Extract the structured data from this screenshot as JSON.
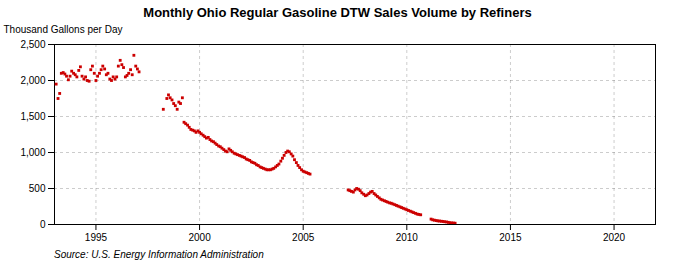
{
  "chart_data": {
    "type": "scatter",
    "title": "Monthly Ohio Regular Gasoline DTW Sales Volume by Refiners",
    "ylabel": "Thousand Gallons per Day",
    "annotation": "Source: U.S. Energy Information Administration",
    "color": "#CC0000",
    "marker": "square",
    "grid": true,
    "xlim": [
      1993.0,
      2022.0
    ],
    "ylim": [
      0,
      2500
    ],
    "xticks": [
      1995,
      2000,
      2005,
      2010,
      2015,
      2020
    ],
    "yticks": [
      0,
      500,
      {
        "value": 1000,
        "label": "1,000"
      },
      {
        "value": 1500,
        "label": "1,500"
      },
      {
        "value": 2000,
        "label": "2,000"
      },
      {
        "value": 2500,
        "label": "2,500"
      }
    ],
    "x": [
      1993.08,
      1993.17,
      1993.25,
      1993.33,
      1993.42,
      1993.5,
      1993.58,
      1993.67,
      1993.75,
      1993.83,
      1993.92,
      1994.0,
      1994.08,
      1994.17,
      1994.25,
      1994.33,
      1994.42,
      1994.5,
      1994.58,
      1994.67,
      1994.75,
      1994.83,
      1994.92,
      1995.0,
      1995.08,
      1995.17,
      1995.25,
      1995.33,
      1995.42,
      1995.5,
      1995.58,
      1995.67,
      1995.75,
      1995.83,
      1995.92,
      1996.0,
      1996.08,
      1996.17,
      1996.25,
      1996.33,
      1996.42,
      1996.5,
      1996.58,
      1996.67,
      1996.75,
      1996.83,
      1996.92,
      1997.0,
      1997.08,
      1998.25,
      1998.42,
      1998.5,
      1998.58,
      1998.67,
      1998.75,
      1998.83,
      1998.92,
      1999.0,
      1999.08,
      1999.17,
      1999.25,
      1999.33,
      1999.42,
      1999.5,
      1999.58,
      1999.67,
      1999.75,
      1999.83,
      1999.92,
      2000.0,
      2000.08,
      2000.17,
      2000.25,
      2000.33,
      2000.42,
      2000.5,
      2000.58,
      2000.67,
      2000.75,
      2000.83,
      2000.92,
      2001.0,
      2001.08,
      2001.17,
      2001.25,
      2001.33,
      2001.42,
      2001.5,
      2001.58,
      2001.67,
      2001.75,
      2001.83,
      2001.92,
      2002.0,
      2002.08,
      2002.17,
      2002.25,
      2002.33,
      2002.42,
      2002.5,
      2002.58,
      2002.67,
      2002.75,
      2002.83,
      2002.92,
      2003.0,
      2003.08,
      2003.17,
      2003.25,
      2003.33,
      2003.42,
      2003.5,
      2003.58,
      2003.67,
      2003.75,
      2003.83,
      2003.92,
      2004.0,
      2004.08,
      2004.17,
      2004.25,
      2004.33,
      2004.42,
      2004.5,
      2004.58,
      2004.67,
      2004.75,
      2004.83,
      2004.92,
      2005.0,
      2005.08,
      2005.17,
      2005.25,
      2005.33,
      2007.17,
      2007.25,
      2007.33,
      2007.42,
      2007.5,
      2007.58,
      2007.67,
      2007.75,
      2007.83,
      2007.92,
      2008.0,
      2008.08,
      2008.17,
      2008.25,
      2008.33,
      2008.42,
      2008.5,
      2008.58,
      2008.67,
      2008.75,
      2008.83,
      2008.92,
      2009.0,
      2009.08,
      2009.17,
      2009.25,
      2009.33,
      2009.42,
      2009.5,
      2009.58,
      2009.67,
      2009.75,
      2009.83,
      2009.92,
      2010.0,
      2010.08,
      2010.17,
      2010.25,
      2010.33,
      2010.42,
      2010.5,
      2010.58,
      2010.67,
      2011.17,
      2011.25,
      2011.33,
      2011.42,
      2011.5,
      2011.58,
      2011.67,
      2011.75,
      2011.83,
      2011.92,
      2012.0,
      2012.08,
      2012.17,
      2012.25,
      2012.33
    ],
    "values": [
      1950,
      1750,
      1820,
      2100,
      2110,
      2090,
      2060,
      2010,
      2060,
      2130,
      2100,
      2080,
      2050,
      2140,
      2190,
      2060,
      2020,
      2050,
      2000,
      1990,
      2150,
      2200,
      2100,
      2000,
      2060,
      2100,
      2150,
      2200,
      2160,
      2080,
      2100,
      2020,
      2000,
      2050,
      2020,
      2050,
      2200,
      2280,
      2220,
      2180,
      2050,
      2070,
      2100,
      2150,
      2080,
      2350,
      2200,
      2160,
      2120,
      1600,
      1750,
      1800,
      1760,
      1730,
      1680,
      1650,
      1600,
      1700,
      1680,
      1760,
      1420,
      1400,
      1380,
      1350,
      1320,
      1310,
      1300,
      1280,
      1300,
      1280,
      1260,
      1240,
      1220,
      1200,
      1210,
      1180,
      1160,
      1150,
      1130,
      1110,
      1090,
      1080,
      1060,
      1040,
      1020,
      1010,
      1050,
      1030,
      1010,
      990,
      980,
      970,
      960,
      950,
      940,
      930,
      910,
      900,
      890,
      870,
      860,
      850,
      830,
      820,
      800,
      790,
      780,
      770,
      760,
      760,
      760,
      770,
      780,
      800,
      820,
      840,
      880,
      920,
      960,
      1000,
      1020,
      1010,
      980,
      950,
      900,
      860,
      820,
      790,
      760,
      740,
      730,
      720,
      710,
      700,
      480,
      470,
      460,
      450,
      480,
      500,
      490,
      470,
      440,
      420,
      400,
      410,
      430,
      450,
      460,
      430,
      410,
      390,
      370,
      350,
      340,
      330,
      320,
      310,
      300,
      295,
      285,
      275,
      265,
      255,
      245,
      235,
      225,
      215,
      205,
      195,
      185,
      175,
      165,
      155,
      145,
      140,
      135,
      75,
      65,
      60,
      55,
      50,
      48,
      45,
      42,
      38,
      35,
      30,
      25,
      22,
      20,
      18
    ]
  }
}
